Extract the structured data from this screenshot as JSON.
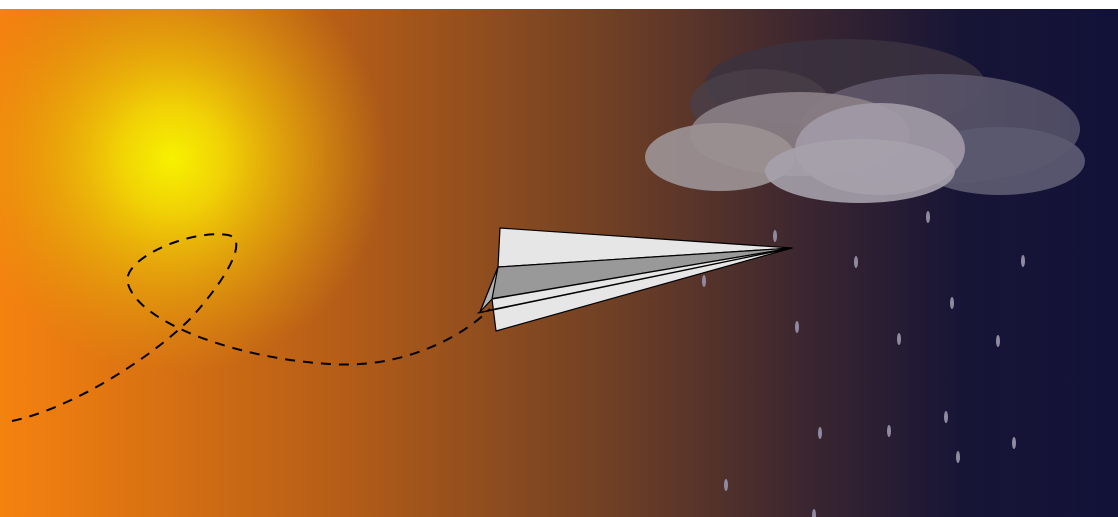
{
  "scene": {
    "subjects": [
      "sun-icon",
      "paper-plane-icon",
      "rain-cloud-icon",
      "raindrop-icon",
      "flight-path-icon"
    ],
    "colors": {
      "sky_left": "#f5820f",
      "sky_mid": "#7a4523",
      "sky_right": "#121238",
      "sun_core": "#f7f200",
      "sun_glow": "#e9b208",
      "plane_light": "#e6e6e6",
      "plane_dark": "#999999",
      "plane_outline": "#000000",
      "cloud_light": "#a5a1ab",
      "cloud_dark": "#4e4a5a",
      "raindrop": "#8f8aa0",
      "flight_path": "#000000"
    }
  }
}
